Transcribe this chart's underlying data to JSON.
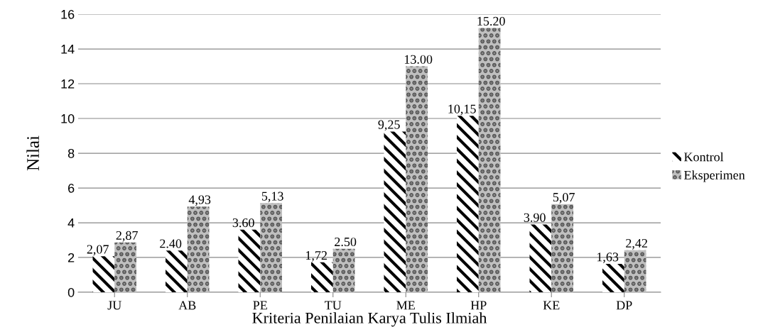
{
  "chart_data": {
    "type": "bar",
    "xlabel": "Kriteria Penilaian Karya Tulis Ilmiah",
    "ylabel": "Nilai",
    "categories": [
      "JU",
      "AB",
      "PE",
      "TU",
      "ME",
      "HP",
      "KE",
      "DP"
    ],
    "series": [
      {
        "name": "Kontrol",
        "color": "#000000",
        "values": [
          2.07,
          2.4,
          3.6,
          1.72,
          9.25,
          10.15,
          3.9,
          1.63
        ],
        "value_labels": [
          "2,07",
          "2.40",
          "3.60",
          "1,72",
          "9,25",
          "10,15",
          "3.90",
          "1,63"
        ]
      },
      {
        "name": "Eksperimen",
        "color": "#bfbfbf",
        "values": [
          2.87,
          4.93,
          5.13,
          2.5,
          13.0,
          15.2,
          5.07,
          2.42
        ],
        "value_labels": [
          "2,87",
          "4,93",
          "5,13",
          "2.50",
          "13.00",
          "15.20",
          "5,07",
          "2,42"
        ]
      }
    ],
    "ylim": [
      0,
      16
    ],
    "yticks": [
      0,
      2,
      4,
      6,
      8,
      10,
      12,
      14,
      16
    ],
    "grid": "y",
    "legend": "right"
  }
}
